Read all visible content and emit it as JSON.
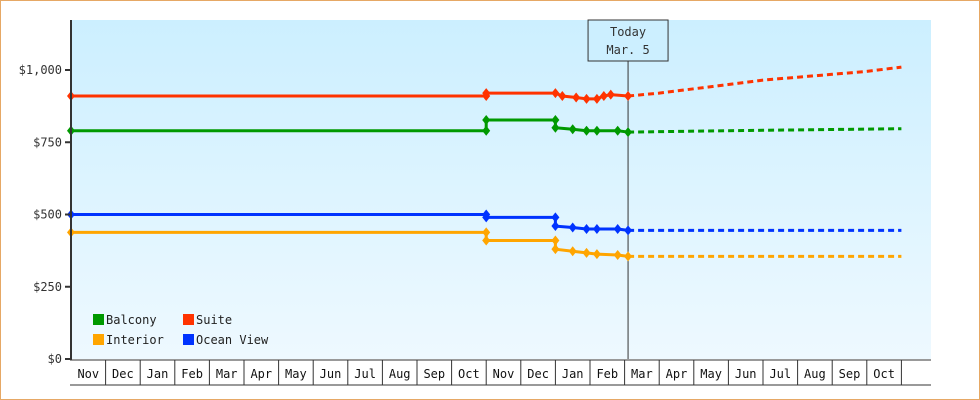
{
  "chart_data": {
    "type": "line",
    "title": "",
    "xlabel": "",
    "ylabel": "",
    "ylim": [
      0,
      1170
    ],
    "y_ticks": [
      "$0",
      "$250",
      "$500",
      "$750",
      "$1,000"
    ],
    "y_tick_values": [
      0,
      250,
      500,
      750,
      1000
    ],
    "x_tick_labels": [
      "Nov",
      "Dec",
      "Jan",
      "Feb",
      "Mar",
      "Apr",
      "May",
      "Jun",
      "Jul",
      "Aug",
      "Sep",
      "Oct",
      "Nov",
      "Dec",
      "Jan",
      "Feb",
      "Mar",
      "Apr",
      "May",
      "Jun",
      "Jul",
      "Aug",
      "Sep",
      "Oct"
    ],
    "grid": false,
    "legend_position": "bottom-left inside",
    "annotation": {
      "label_line1": "Today",
      "label_line2": "Mar. 5",
      "x_month_index": 16.1
    },
    "series": [
      {
        "name": "Suite",
        "color": "#ff3300",
        "historical": [
          [
            0,
            910
          ],
          [
            12,
            910
          ],
          [
            12,
            920
          ],
          [
            14,
            920
          ],
          [
            14.2,
            910
          ],
          [
            14.6,
            905
          ],
          [
            14.9,
            900
          ],
          [
            15.2,
            900
          ],
          [
            15.4,
            910
          ],
          [
            15.6,
            915
          ],
          [
            16.1,
            910
          ]
        ],
        "forecast": [
          [
            16.1,
            910
          ],
          [
            17,
            920
          ],
          [
            18,
            935
          ],
          [
            19,
            950
          ],
          [
            20,
            965
          ],
          [
            21,
            975
          ],
          [
            22,
            985
          ],
          [
            23,
            995
          ],
          [
            24,
            1010
          ]
        ]
      },
      {
        "name": "Balcony",
        "color": "#009900",
        "historical": [
          [
            0,
            790
          ],
          [
            12,
            790
          ],
          [
            12,
            827
          ],
          [
            14,
            827
          ],
          [
            14,
            800
          ],
          [
            14.5,
            795
          ],
          [
            14.9,
            790
          ],
          [
            15.2,
            790
          ],
          [
            15.8,
            790
          ],
          [
            16.1,
            785
          ]
        ],
        "forecast": [
          [
            16.1,
            785
          ],
          [
            19,
            790
          ],
          [
            24,
            797
          ]
        ]
      },
      {
        "name": "Ocean View",
        "color": "#0033ff",
        "historical": [
          [
            0,
            500
          ],
          [
            12,
            500
          ],
          [
            12,
            490
          ],
          [
            14,
            490
          ],
          [
            14,
            460
          ],
          [
            14.5,
            455
          ],
          [
            14.9,
            450
          ],
          [
            15.2,
            450
          ],
          [
            15.8,
            450
          ],
          [
            16.1,
            445
          ]
        ],
        "forecast": [
          [
            16.1,
            445
          ],
          [
            24,
            445
          ]
        ]
      },
      {
        "name": "Interior",
        "color": "#ffa500",
        "historical": [
          [
            0,
            438
          ],
          [
            12,
            438
          ],
          [
            12,
            410
          ],
          [
            14,
            410
          ],
          [
            14,
            380
          ],
          [
            14.5,
            373
          ],
          [
            14.9,
            367
          ],
          [
            15.2,
            363
          ],
          [
            15.8,
            360
          ],
          [
            16.1,
            355
          ]
        ],
        "forecast": [
          [
            16.1,
            355
          ],
          [
            24,
            355
          ]
        ]
      }
    ]
  },
  "legend": [
    {
      "label": "Balcony",
      "color": "#009900"
    },
    {
      "label": "Suite",
      "color": "#ff3300"
    },
    {
      "label": "Interior",
      "color": "#ffa500"
    },
    {
      "label": "Ocean View",
      "color": "#0033ff"
    }
  ]
}
